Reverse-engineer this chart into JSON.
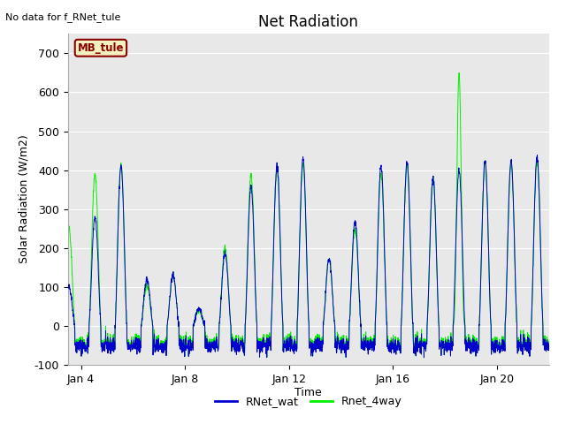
{
  "title": "Net Radiation",
  "xlabel": "Time",
  "ylabel": "Solar Radiation (W/m2)",
  "ylim": [
    -100,
    750
  ],
  "yticks": [
    -100,
    0,
    100,
    200,
    300,
    400,
    500,
    600,
    700
  ],
  "note_text": "No data for f_RNet_tule",
  "legend_box_text": "MB_tule",
  "legend_box_color": "#f5f0c0",
  "legend_box_edgecolor": "#8b0000",
  "line1_label": "RNet_wat",
  "line1_color": "#0000cd",
  "line2_label": "Rnet_4way",
  "line2_color": "#00ee00",
  "bg_color": "#e8e8e8",
  "fig_bg_color": "#ffffff",
  "start_day": 3.5,
  "end_day": 22.0,
  "points_per_day": 144,
  "seed": 42,
  "xtick_days": [
    4,
    8,
    12,
    16,
    20
  ],
  "xtick_labels": [
    "Jan 4",
    "Jan 8",
    "Jan 12",
    "Jan 16",
    "Jan 20"
  ]
}
